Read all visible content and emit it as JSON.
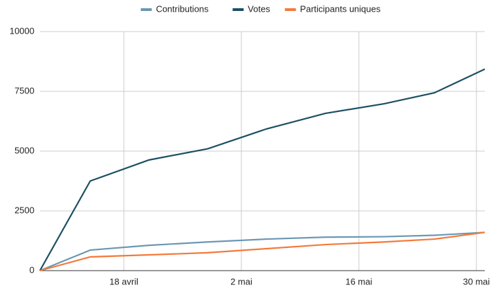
{
  "chart_data": {
    "type": "line",
    "x": [
      "04-08",
      "04-14",
      "04-21",
      "04-28",
      "05-05",
      "05-12",
      "05-19",
      "05-25",
      "05-31"
    ],
    "series": [
      {
        "name": "Contributions",
        "color": "#6b97b2",
        "values": [
          0,
          860,
          1060,
          1200,
          1320,
          1400,
          1420,
          1480,
          1600
        ]
      },
      {
        "name": "Votes",
        "color": "#1b4f63",
        "values": [
          0,
          3750,
          4630,
          5100,
          5930,
          6580,
          6980,
          7440,
          8430
        ]
      },
      {
        "name": "Participants uniques",
        "color": "#f4793b",
        "values": [
          0,
          575,
          660,
          750,
          920,
          1090,
          1200,
          1320,
          1600
        ]
      }
    ],
    "xlim": [
      "04-08",
      "05-31"
    ],
    "xticks": [
      {
        "value": "04-18",
        "label": "18 avril"
      },
      {
        "value": "05-02",
        "label": "2 mai"
      },
      {
        "value": "05-16",
        "label": "16 mai"
      },
      {
        "value": "05-30",
        "label": "30 mai"
      }
    ],
    "ylim": [
      0,
      10000
    ],
    "yticks": [
      0,
      2500,
      5000,
      7500,
      10000
    ],
    "grid": true,
    "legend": "top"
  }
}
